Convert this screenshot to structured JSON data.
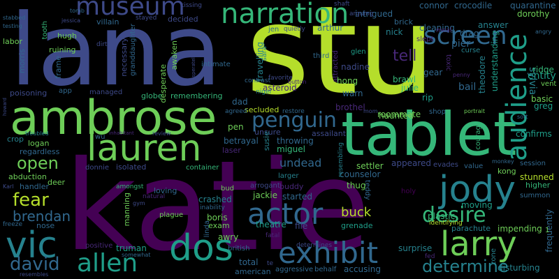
{
  "background": "#000000",
  "palette": [
    "#440154",
    "#482878",
    "#3e4a89",
    "#31688e",
    "#26828e",
    "#1f9e89",
    "#35b779",
    "#6ece58",
    "#b5de2b"
  ],
  "words": [
    {
      "text": "stu",
      "color": "#b5de2b"
    },
    {
      "text": "katie",
      "color": "#440154"
    },
    {
      "text": "lana",
      "color": "#3e4a89"
    },
    {
      "text": "tablet",
      "color": "#35b779"
    },
    {
      "text": "ambrose",
      "color": "#6ece58"
    },
    {
      "text": "narration",
      "color": "#35b779"
    },
    {
      "text": "lauren",
      "color": "#6ece58"
    },
    {
      "text": "museum",
      "color": "#3e4a89"
    },
    {
      "text": "screen",
      "color": "#31688e"
    },
    {
      "text": "audience",
      "color": "#1f9e89"
    },
    {
      "text": "jody",
      "color": "#26828e"
    },
    {
      "text": "larry",
      "color": "#6ece58"
    },
    {
      "text": "dos",
      "color": "#1f9e89"
    },
    {
      "text": "vic",
      "color": "#26828e"
    },
    {
      "text": "exhibit",
      "color": "#31688e"
    },
    {
      "text": "allen",
      "color": "#1f9e89"
    },
    {
      "text": "actor",
      "color": "#31688e"
    },
    {
      "text": "desire",
      "color": "#35b779"
    },
    {
      "text": "penguin",
      "color": "#31688e"
    },
    {
      "text": "determine",
      "color": "#26828e"
    },
    {
      "text": "david",
      "color": "#31688e"
    },
    {
      "text": "fear",
      "color": "#b5de2b"
    },
    {
      "text": "open",
      "color": "#6ece58"
    },
    {
      "text": "brendan",
      "color": "#31688e"
    },
    {
      "text": "tell",
      "color": "#482878"
    },
    {
      "text": "undead",
      "color": "#31688e"
    },
    {
      "text": "buck",
      "color": "#b5de2b"
    },
    {
      "text": "entity",
      "color": "#1f9e89"
    },
    {
      "text": "sylvia",
      "color": "#26828e"
    },
    {
      "text": "crocodile",
      "color": "#31688e"
    },
    {
      "text": "connor",
      "color": "#31688e"
    },
    {
      "text": "quarantine",
      "color": "#31688e"
    },
    {
      "text": "dorothy",
      "color": "#6ece58"
    },
    {
      "text": "answer",
      "color": "#26828e"
    },
    {
      "text": "understanding",
      "color": "#1f9e89"
    },
    {
      "text": "theodore",
      "color": "#26828e"
    },
    {
      "text": "ridge",
      "color": "#35b779"
    },
    {
      "text": "vent",
      "color": "#6ece58"
    },
    {
      "text": "bail",
      "color": "#31688e"
    },
    {
      "text": "pier",
      "color": "#31688e"
    },
    {
      "text": "curse",
      "color": "#26828e"
    },
    {
      "text": "drag",
      "color": "#31688e"
    },
    {
      "text": "cleaning",
      "color": "#31688e"
    },
    {
      "text": "slept",
      "color": "#482878"
    },
    {
      "text": "meal",
      "color": "#482878"
    },
    {
      "text": "toxic",
      "color": "#482878"
    },
    {
      "text": "gear",
      "color": "#31688e"
    },
    {
      "text": "penny",
      "color": "#482878"
    },
    {
      "text": "shop",
      "color": "#31688e"
    },
    {
      "text": "rip",
      "color": "#1f9e89"
    },
    {
      "text": "basic",
      "color": "#6ece58"
    },
    {
      "text": "greg",
      "color": "#1f9e89"
    },
    {
      "text": "confirms",
      "color": "#1f9e89"
    },
    {
      "text": "portrait",
      "color": "#6ece58"
    },
    {
      "text": "sort",
      "color": "#31688e"
    },
    {
      "text": "session",
      "color": "#31688e"
    },
    {
      "text": "courage",
      "color": "#35b779"
    },
    {
      "text": "value",
      "color": "#31688e"
    },
    {
      "text": "kong",
      "color": "#6ece58"
    },
    {
      "text": "stunned",
      "color": "#b5de2b"
    },
    {
      "text": "higher",
      "color": "#35b779"
    },
    {
      "text": "summon",
      "color": "#31688e"
    },
    {
      "text": "monkey",
      "color": "#31688e"
    },
    {
      "text": "evades",
      "color": "#3e4a89"
    },
    {
      "text": "impending",
      "color": "#6ece58"
    },
    {
      "text": "frequently",
      "color": "#31688e"
    },
    {
      "text": "parachute",
      "color": "#26828e"
    },
    {
      "text": "moving",
      "color": "#1f9e89"
    },
    {
      "text": "plastic",
      "color": "#35b779"
    },
    {
      "text": "identifying",
      "color": "#b5de2b"
    },
    {
      "text": "holy",
      "color": "#440154"
    },
    {
      "text": "zone",
      "color": "#26828e"
    },
    {
      "text": "disturbing",
      "color": "#26828e"
    },
    {
      "text": "fed",
      "color": "#482878"
    },
    {
      "text": "surprise",
      "color": "#26828e"
    },
    {
      "text": "accusing",
      "color": "#31688e"
    },
    {
      "text": "aggressive",
      "color": "#31688e"
    },
    {
      "text": "behalf",
      "color": "#31688e"
    },
    {
      "text": "total",
      "color": "#31688e"
    },
    {
      "text": "american",
      "color": "#31688e"
    },
    {
      "text": "determines",
      "color": "#3e4a89"
    },
    {
      "text": "te",
      "color": "#3e4a89"
    },
    {
      "text": "settler",
      "color": "#6ece58"
    },
    {
      "text": "counselor",
      "color": "#31688e"
    },
    {
      "text": "appeared",
      "color": "#3e4a89"
    },
    {
      "text": "thug",
      "color": "#6ece58"
    },
    {
      "text": "grenade",
      "color": "#1f9e89"
    },
    {
      "text": "roommate",
      "color": "#6ece58"
    },
    {
      "text": "assailant",
      "color": "#3e4a89"
    },
    {
      "text": "brothel",
      "color": "#482878"
    },
    {
      "text": "mom",
      "color": "#3e4a89"
    },
    {
      "text": "hong",
      "color": "#6ece58"
    },
    {
      "text": "warn",
      "color": "#31688e"
    },
    {
      "text": "nadine",
      "color": "#3e4a89"
    },
    {
      "text": "brawl",
      "color": "#35b779"
    },
    {
      "text": "julie",
      "color": "#35b779"
    },
    {
      "text": "haunted",
      "color": "#6ece58"
    },
    {
      "text": "glen",
      "color": "#1f9e89"
    },
    {
      "text": "third",
      "color": "#31688e"
    },
    {
      "text": "nick",
      "color": "#26828e"
    },
    {
      "text": "brick",
      "color": "#31688e"
    },
    {
      "text": "intrigued",
      "color": "#31688e"
    },
    {
      "text": "arguing",
      "color": "#3e4a89"
    },
    {
      "text": "shaft",
      "color": "#3e4a89"
    },
    {
      "text": "quietly",
      "color": "#3e4a89"
    },
    {
      "text": "arthur",
      "color": "#31688e"
    },
    {
      "text": "jen",
      "color": "#31688e"
    },
    {
      "text": "sara",
      "color": "#26828e"
    },
    {
      "text": "attracted",
      "color": "#482878"
    },
    {
      "text": "favorite",
      "color": "#3e4a89"
    },
    {
      "text": "button",
      "color": "#482878"
    },
    {
      "text": "restore",
      "color": "#31688e"
    },
    {
      "text": "secluded",
      "color": "#b5de2b"
    },
    {
      "text": "asteroid",
      "color": "#482878"
    },
    {
      "text": "travelling",
      "color": "#26828e"
    },
    {
      "text": "contrast",
      "color": "#31688e"
    },
    {
      "text": "nigel",
      "color": "#26828e"
    },
    {
      "text": "dad",
      "color": "#31688e"
    },
    {
      "text": "agreed",
      "color": "#31688e"
    },
    {
      "text": "unsure",
      "color": "#3e4a89"
    },
    {
      "text": "susie",
      "color": "#26828e"
    },
    {
      "text": "throwing",
      "color": "#31688e"
    },
    {
      "text": "miguel",
      "color": "#35b779"
    },
    {
      "text": "betrayal",
      "color": "#31688e"
    },
    {
      "text": "laser",
      "color": "#482878"
    },
    {
      "text": "pen",
      "color": "#6ece58"
    },
    {
      "text": "resembling",
      "color": "#26828e"
    },
    {
      "text": "teddy",
      "color": "#31688e"
    },
    {
      "text": "larger",
      "color": "#26828e"
    },
    {
      "text": "buddy",
      "color": "#482878"
    },
    {
      "text": "started",
      "color": "#31688e"
    },
    {
      "text": "jackie",
      "color": "#6ece58"
    },
    {
      "text": "arrogant",
      "color": "#3e4a89"
    },
    {
      "text": "theatre",
      "color": "#1f9e89"
    },
    {
      "text": "file",
      "color": "#3e4a89"
    },
    {
      "text": "boris",
      "color": "#6ece58"
    },
    {
      "text": "exam",
      "color": "#6ece58"
    },
    {
      "text": "linda",
      "color": "#31688e"
    },
    {
      "text": "awry",
      "color": "#6ece58"
    },
    {
      "text": "british",
      "color": "#31688e"
    },
    {
      "text": "fatal",
      "color": "#482878"
    },
    {
      "text": "crashed",
      "color": "#26828e"
    },
    {
      "text": "inability",
      "color": "#31688e"
    },
    {
      "text": "bud",
      "color": "#6ece58"
    },
    {
      "text": "truman",
      "color": "#1f9e89"
    },
    {
      "text": "plague",
      "color": "#6ece58"
    },
    {
      "text": "somewhat",
      "color": "#31688e"
    },
    {
      "text": "positive",
      "color": "#482878"
    },
    {
      "text": "resembles",
      "color": "#3e4a89"
    },
    {
      "text": "container",
      "color": "#35b779"
    },
    {
      "text": "loving",
      "color": "#31688e"
    },
    {
      "text": "natural",
      "color": "#482878"
    },
    {
      "text": "gym",
      "color": "#3e4a89"
    },
    {
      "text": "manning",
      "color": "#6ece58"
    },
    {
      "text": "amongst",
      "color": "#35b779"
    },
    {
      "text": "isolated",
      "color": "#3e4a89"
    },
    {
      "text": "donnie",
      "color": "#3e4a89"
    },
    {
      "text": "wu",
      "color": "#31688e"
    },
    {
      "text": "review",
      "color": "#3e4a89"
    },
    {
      "text": "inhabitant",
      "color": "#482878"
    },
    {
      "text": "deer",
      "color": "#6ece58"
    },
    {
      "text": "nose",
      "color": "#31688e"
    },
    {
      "text": "freeze",
      "color": "#31688e"
    },
    {
      "text": "handler",
      "color": "#31688e"
    },
    {
      "text": "Karl",
      "color": "#3e4a89"
    },
    {
      "text": "abduction",
      "color": "#6ece58"
    },
    {
      "text": "logan",
      "color": "#6ece58"
    },
    {
      "text": "regardless",
      "color": "#31688e"
    },
    {
      "text": "crop",
      "color": "#26828e"
    },
    {
      "text": "troubled",
      "color": "#26828e"
    },
    {
      "text": "howard",
      "color": "#3e4a89"
    },
    {
      "text": "poisoning",
      "color": "#3e4a89"
    },
    {
      "text": "app",
      "color": "#31688e"
    },
    {
      "text": "managed",
      "color": "#3e4a89"
    },
    {
      "text": "globe",
      "color": "#35b779"
    },
    {
      "text": "remembering",
      "color": "#35b779"
    },
    {
      "text": "awaken",
      "color": "#6ece58"
    },
    {
      "text": "desperate",
      "color": "#6ece58"
    },
    {
      "text": "desperately",
      "color": "#3e4a89"
    },
    {
      "text": "intimate",
      "color": "#31688e"
    },
    {
      "text": "decided",
      "color": "#3e4a89"
    },
    {
      "text": "stayed",
      "color": "#3e4a89"
    },
    {
      "text": "kissing",
      "color": "#3e4a89"
    },
    {
      "text": "granddaughter",
      "color": "#31688e"
    },
    {
      "text": "necessary",
      "color": "#3e4a89"
    },
    {
      "text": "villain",
      "color": "#31688e"
    },
    {
      "text": "dirty",
      "color": "#3e4a89"
    },
    {
      "text": "hugh",
      "color": "#6ece58"
    },
    {
      "text": "ruining",
      "color": "#6ece58"
    },
    {
      "text": "frame",
      "color": "#31688e"
    },
    {
      "text": "morris",
      "color": "#31688e"
    },
    {
      "text": "tooth",
      "color": "#35b779"
    },
    {
      "text": "labor",
      "color": "#6ece58"
    },
    {
      "text": "jessica",
      "color": "#3e4a89"
    },
    {
      "text": "tomb",
      "color": "#31688e"
    },
    {
      "text": "stabbed",
      "color": "#31688e"
    },
    {
      "text": "testing",
      "color": "#31688e"
    },
    {
      "text": "angry",
      "color": "#31688e"
    },
    {
      "text": "1",
      "color": "#6ece58"
    }
  ]
}
